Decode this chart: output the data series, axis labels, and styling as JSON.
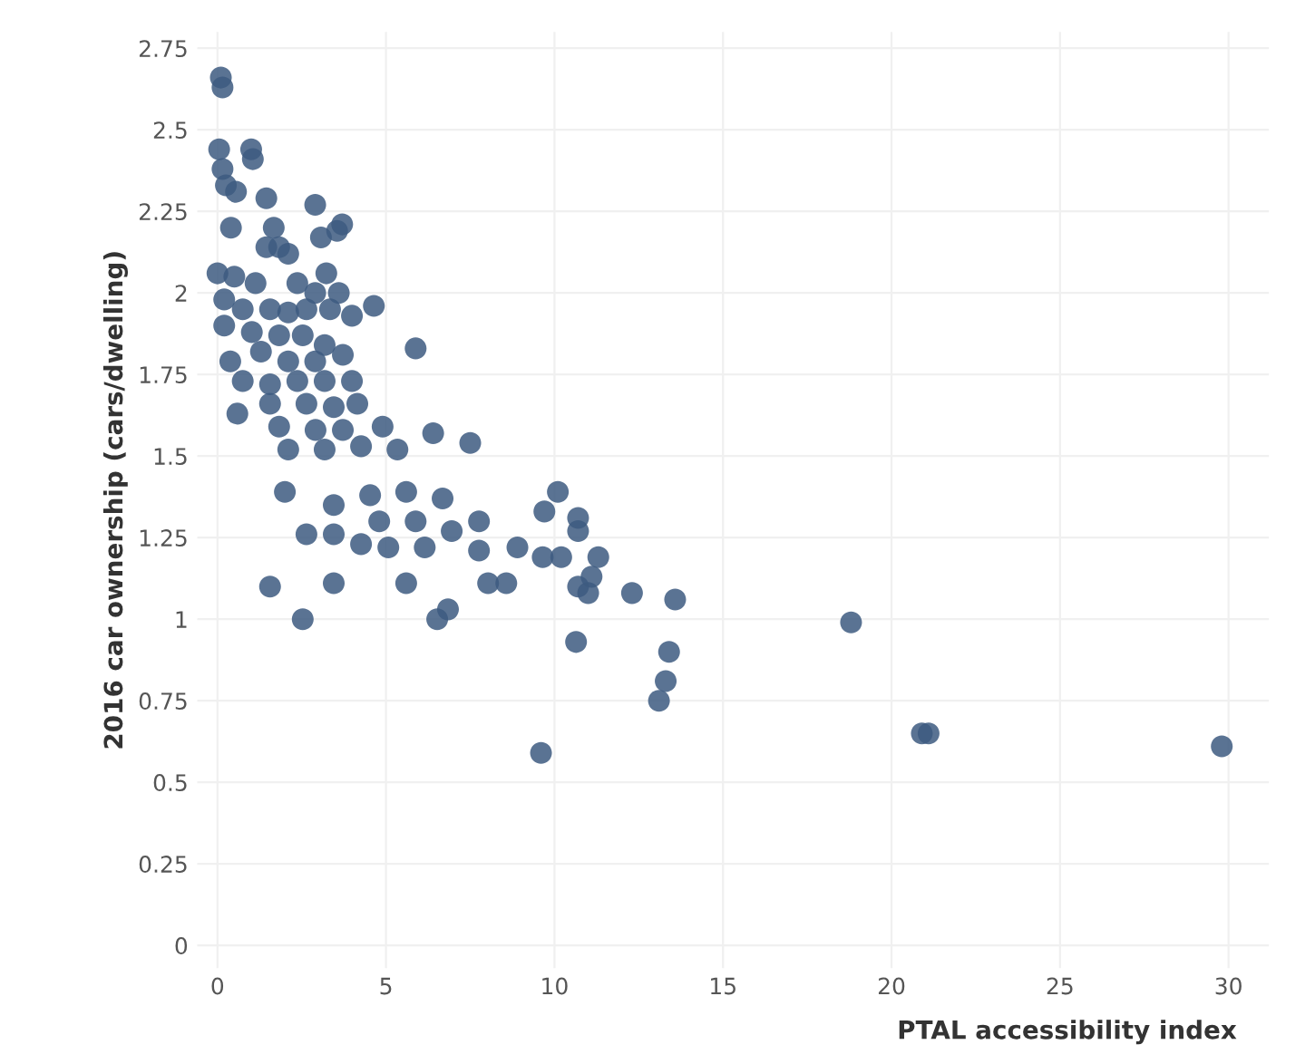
{
  "chart_data": {
    "type": "scatter",
    "xlabel": "PTAL accessibility index",
    "ylabel": "2016 car ownership (cars/dwelling)",
    "xlim": [
      -0.6,
      31.2
    ],
    "ylim": [
      -0.07,
      2.8
    ],
    "xticks": [
      0,
      5,
      10,
      15,
      20,
      25,
      30
    ],
    "yticks": [
      0,
      0.25,
      0.5,
      0.75,
      1,
      1.25,
      1.5,
      1.75,
      2,
      2.25,
      2.5,
      2.75
    ],
    "grid": true,
    "marker": "circle",
    "series": [
      {
        "color": "#3d5a80",
        "x": [
          0.1,
          0.15,
          0.05,
          0.15,
          1.0,
          1.05,
          0.25,
          0.55,
          1.45,
          2.9,
          0.4,
          1.67,
          3.55,
          3.7,
          3.07,
          1.45,
          1.83,
          2.1,
          4.64,
          3.23,
          0,
          0.5,
          1.13,
          2.37,
          2.9,
          3.6,
          0.2,
          0.75,
          1.56,
          2.1,
          2.64,
          3.34,
          3.99,
          0.2,
          1.02,
          1.83,
          2.53,
          3.18,
          5.88,
          0.38,
          1.29,
          2.1,
          2.9,
          3.72,
          0.75,
          1.56,
          2.37,
          3.18,
          3.99,
          0.59,
          1.56,
          2.64,
          3.45,
          4.15,
          1.83,
          2.91,
          3.72,
          4.9,
          2.1,
          3.18,
          4.26,
          5.34,
          6.4,
          7.5,
          2.0,
          3.45,
          4.53,
          5.6,
          6.68,
          4.8,
          5.88,
          6.95,
          7.76,
          4.26,
          5.07,
          6.15,
          7.76,
          2.64,
          3.45,
          1.56,
          3.45,
          5.6,
          8.03,
          2.53,
          6.52,
          6.84,
          8.57,
          8.9,
          9.65,
          10.1,
          9.7,
          10.7,
          10.7,
          10.2,
          11.3,
          10.7,
          11.0,
          11.1,
          12.3,
          13.58,
          10.64,
          13.4,
          13.3,
          13.1,
          9.6,
          18.8,
          20.9,
          21.1,
          29.8
        ],
        "values": [
          2.66,
          2.63,
          2.44,
          2.38,
          2.44,
          2.41,
          2.33,
          2.31,
          2.29,
          2.27,
          2.2,
          2.2,
          2.19,
          2.21,
          2.17,
          2.14,
          2.14,
          2.12,
          1.96,
          2.06,
          2.06,
          2.05,
          2.03,
          2.03,
          2.0,
          2.0,
          1.98,
          1.95,
          1.95,
          1.94,
          1.95,
          1.95,
          1.93,
          1.9,
          1.88,
          1.87,
          1.87,
          1.84,
          1.83,
          1.79,
          1.82,
          1.79,
          1.79,
          1.81,
          1.73,
          1.72,
          1.73,
          1.73,
          1.73,
          1.63,
          1.66,
          1.66,
          1.65,
          1.66,
          1.59,
          1.58,
          1.58,
          1.59,
          1.52,
          1.52,
          1.53,
          1.52,
          1.57,
          1.54,
          1.39,
          1.35,
          1.38,
          1.39,
          1.37,
          1.3,
          1.3,
          1.27,
          1.3,
          1.23,
          1.22,
          1.22,
          1.21,
          1.26,
          1.26,
          1.1,
          1.11,
          1.11,
          1.11,
          1.0,
          1.0,
          1.03,
          1.11,
          1.22,
          1.19,
          1.39,
          1.33,
          1.31,
          1.27,
          1.19,
          1.19,
          1.1,
          1.08,
          1.13,
          1.08,
          1.06,
          0.93,
          0.9,
          0.81,
          0.75,
          0.59,
          0.99,
          0.65,
          0.65,
          0.61
        ]
      }
    ]
  }
}
